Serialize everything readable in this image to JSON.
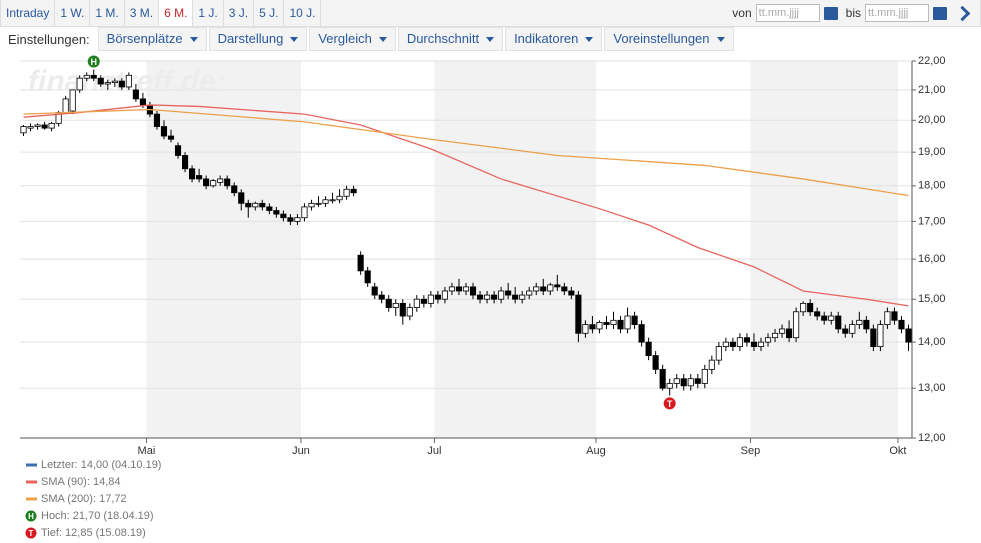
{
  "toolbar": {
    "periods": [
      "Intraday",
      "1 W.",
      "1 M.",
      "3 M.",
      "6 M.",
      "1 J.",
      "3 J.",
      "5 J.",
      "10 J."
    ],
    "active_period": 4,
    "from_label": "von",
    "to_label": "bis",
    "date_placeholder": "tt.mm.jjjj"
  },
  "settings": {
    "label": "Einstellungen:",
    "menus": [
      "Börsenplätze",
      "Darstellung",
      "Vergleich",
      "Durchschnitt",
      "Indikatoren",
      "Voreinstellungen"
    ]
  },
  "chart_data": {
    "type": "candlestick",
    "watermark": "finanztreff.de:",
    "up_color": "#ffffff",
    "down_color": "#000000",
    "ohlc": [
      [
        19.6,
        19.85,
        19.5,
        19.8
      ],
      [
        19.75,
        19.9,
        19.65,
        19.8
      ],
      [
        19.8,
        19.9,
        19.7,
        19.85
      ],
      [
        19.85,
        19.95,
        19.7,
        19.75
      ],
      [
        19.75,
        19.95,
        19.65,
        19.9
      ],
      [
        19.9,
        20.3,
        19.8,
        20.25
      ],
      [
        20.25,
        20.8,
        20.2,
        20.7
      ],
      [
        20.3,
        21.0,
        20.2,
        21.0
      ],
      [
        21.0,
        21.5,
        20.9,
        21.4
      ],
      [
        21.4,
        21.6,
        21.3,
        21.5
      ],
      [
        21.5,
        21.7,
        21.3,
        21.4
      ],
      [
        21.4,
        21.5,
        21.1,
        21.2
      ],
      [
        21.2,
        21.35,
        21.0,
        21.25
      ],
      [
        21.25,
        21.4,
        21.1,
        21.3
      ],
      [
        21.3,
        21.4,
        21.0,
        21.1
      ],
      [
        21.1,
        21.6,
        21.0,
        21.5
      ],
      [
        21.0,
        21.2,
        20.6,
        20.7
      ],
      [
        20.7,
        20.9,
        20.4,
        20.5
      ],
      [
        20.5,
        20.6,
        20.1,
        20.2
      ],
      [
        20.2,
        20.3,
        19.7,
        19.8
      ],
      [
        19.8,
        20.0,
        19.4,
        19.5
      ],
      [
        19.5,
        19.7,
        19.3,
        19.4
      ],
      [
        19.2,
        19.3,
        18.8,
        18.9
      ],
      [
        18.9,
        19.0,
        18.4,
        18.5
      ],
      [
        18.5,
        18.6,
        18.1,
        18.2
      ],
      [
        18.3,
        18.5,
        18.1,
        18.2
      ],
      [
        18.2,
        18.3,
        17.9,
        18.0
      ],
      [
        18.0,
        18.2,
        17.95,
        18.15
      ],
      [
        18.1,
        18.3,
        18.0,
        18.2
      ],
      [
        18.2,
        18.3,
        17.9,
        18.0
      ],
      [
        18.0,
        18.1,
        17.7,
        17.8
      ],
      [
        17.8,
        17.9,
        17.3,
        17.5
      ],
      [
        17.5,
        17.6,
        17.1,
        17.4
      ],
      [
        17.4,
        17.55,
        17.3,
        17.5
      ],
      [
        17.5,
        17.6,
        17.3,
        17.4
      ],
      [
        17.4,
        17.5,
        17.2,
        17.3
      ],
      [
        17.3,
        17.4,
        17.1,
        17.2
      ],
      [
        17.2,
        17.3,
        17.0,
        17.1
      ],
      [
        17.1,
        17.2,
        16.9,
        17.0
      ],
      [
        17.0,
        17.2,
        16.9,
        17.1
      ],
      [
        17.1,
        17.5,
        17.0,
        17.4
      ],
      [
        17.4,
        17.6,
        17.3,
        17.5
      ],
      [
        17.5,
        17.7,
        17.4,
        17.5
      ],
      [
        17.5,
        17.7,
        17.4,
        17.6
      ],
      [
        17.6,
        17.8,
        17.5,
        17.6
      ],
      [
        17.6,
        17.9,
        17.5,
        17.7
      ],
      [
        17.7,
        18.0,
        17.6,
        17.9
      ],
      [
        17.9,
        18.0,
        17.7,
        17.8
      ],
      [
        16.1,
        16.2,
        15.6,
        15.7
      ],
      [
        15.7,
        15.8,
        15.3,
        15.4
      ],
      [
        15.3,
        15.4,
        15.0,
        15.1
      ],
      [
        15.1,
        15.2,
        14.9,
        15.0
      ],
      [
        15.0,
        15.1,
        14.7,
        14.8
      ],
      [
        14.8,
        15.0,
        14.6,
        14.9
      ],
      [
        14.9,
        15.0,
        14.4,
        14.6
      ],
      [
        14.6,
        14.9,
        14.5,
        14.8
      ],
      [
        14.8,
        15.1,
        14.7,
        15.0
      ],
      [
        15.0,
        15.1,
        14.8,
        14.9
      ],
      [
        14.9,
        15.2,
        14.8,
        15.1
      ],
      [
        15.1,
        15.2,
        14.9,
        15.0
      ],
      [
        15.0,
        15.3,
        14.9,
        15.2
      ],
      [
        15.2,
        15.4,
        15.1,
        15.3
      ],
      [
        15.3,
        15.5,
        15.1,
        15.2
      ],
      [
        15.2,
        15.4,
        15.1,
        15.3
      ],
      [
        15.3,
        15.4,
        15.0,
        15.1
      ],
      [
        15.1,
        15.2,
        14.9,
        15.0
      ],
      [
        15.0,
        15.2,
        14.9,
        15.1
      ],
      [
        15.1,
        15.2,
        14.9,
        15.0
      ],
      [
        15.0,
        15.3,
        14.9,
        15.2
      ],
      [
        15.2,
        15.4,
        15.0,
        15.1
      ],
      [
        15.1,
        15.3,
        14.9,
        15.0
      ],
      [
        15.0,
        15.2,
        14.9,
        15.1
      ],
      [
        15.1,
        15.3,
        15.0,
        15.2
      ],
      [
        15.2,
        15.4,
        15.1,
        15.3
      ],
      [
        15.3,
        15.5,
        15.1,
        15.2
      ],
      [
        15.2,
        15.4,
        15.1,
        15.35
      ],
      [
        15.35,
        15.6,
        15.2,
        15.3
      ],
      [
        15.3,
        15.4,
        15.1,
        15.2
      ],
      [
        15.2,
        15.3,
        15.0,
        15.1
      ],
      [
        15.1,
        15.2,
        14.0,
        14.2
      ],
      [
        14.2,
        14.5,
        14.1,
        14.4
      ],
      [
        14.4,
        14.6,
        14.2,
        14.3
      ],
      [
        14.3,
        14.5,
        14.2,
        14.45
      ],
      [
        14.45,
        14.6,
        14.3,
        14.4
      ],
      [
        14.4,
        14.7,
        14.3,
        14.5
      ],
      [
        14.5,
        14.6,
        14.2,
        14.3
      ],
      [
        14.3,
        14.8,
        14.2,
        14.6
      ],
      [
        14.6,
        14.7,
        14.3,
        14.4
      ],
      [
        14.4,
        14.5,
        13.9,
        14.0
      ],
      [
        14.0,
        14.1,
        13.6,
        13.7
      ],
      [
        13.7,
        13.8,
        13.3,
        13.4
      ],
      [
        13.4,
        13.5,
        12.95,
        13.0
      ],
      [
        13.0,
        13.2,
        12.85,
        13.1
      ],
      [
        13.1,
        13.3,
        13.0,
        13.2
      ],
      [
        13.2,
        13.3,
        12.95,
        13.05
      ],
      [
        13.05,
        13.3,
        12.95,
        13.2
      ],
      [
        13.2,
        13.3,
        13.0,
        13.1
      ],
      [
        13.1,
        13.5,
        13.0,
        13.4
      ],
      [
        13.4,
        13.7,
        13.3,
        13.6
      ],
      [
        13.6,
        14.0,
        13.5,
        13.9
      ],
      [
        13.9,
        14.1,
        13.8,
        14.0
      ],
      [
        14.0,
        14.1,
        13.8,
        13.9
      ],
      [
        13.9,
        14.2,
        13.8,
        14.1
      ],
      [
        14.1,
        14.2,
        13.9,
        14.0
      ],
      [
        14.0,
        14.2,
        13.8,
        13.9
      ],
      [
        13.9,
        14.1,
        13.8,
        14.0
      ],
      [
        14.0,
        14.2,
        13.9,
        14.1
      ],
      [
        14.1,
        14.3,
        14.0,
        14.2
      ],
      [
        14.2,
        14.4,
        14.1,
        14.3
      ],
      [
        14.3,
        14.5,
        14.0,
        14.1
      ],
      [
        14.1,
        14.8,
        14.0,
        14.7
      ],
      [
        14.7,
        14.95,
        14.6,
        14.9
      ],
      [
        14.9,
        15.0,
        14.6,
        14.7
      ],
      [
        14.7,
        14.8,
        14.5,
        14.6
      ],
      [
        14.6,
        14.7,
        14.4,
        14.5
      ],
      [
        14.5,
        14.7,
        14.4,
        14.6
      ],
      [
        14.6,
        14.7,
        14.2,
        14.3
      ],
      [
        14.3,
        14.4,
        14.1,
        14.2
      ],
      [
        14.2,
        14.5,
        14.1,
        14.4
      ],
      [
        14.4,
        14.7,
        14.3,
        14.5
      ],
      [
        14.5,
        14.6,
        14.2,
        14.3
      ],
      [
        14.3,
        14.4,
        13.8,
        13.9
      ],
      [
        13.9,
        14.5,
        13.8,
        14.4
      ],
      [
        14.4,
        14.8,
        14.3,
        14.7
      ],
      [
        14.7,
        14.8,
        14.4,
        14.5
      ],
      [
        14.5,
        14.6,
        14.2,
        14.3
      ],
      [
        14.3,
        14.4,
        13.8,
        14.0
      ]
    ],
    "xlim": [
      0,
      127
    ],
    "xticks": [
      {
        "value": 18,
        "label": "Mai"
      },
      {
        "value": 40,
        "label": "Jun"
      },
      {
        "value": 59,
        "label": "Jul"
      },
      {
        "value": 82,
        "label": "Aug"
      },
      {
        "value": 104,
        "label": "Sep"
      },
      {
        "value": 125,
        "label": "Okt"
      }
    ],
    "ylim": [
      12,
      22
    ],
    "log_scale": true,
    "grid": true,
    "yticks": [
      {
        "value": 12,
        "label": "12,00"
      },
      {
        "value": 13,
        "label": "13,00"
      },
      {
        "value": 14,
        "label": "14,00"
      },
      {
        "value": 15,
        "label": "15,00"
      },
      {
        "value": 16,
        "label": "16,00"
      },
      {
        "value": 17,
        "label": "17,00"
      },
      {
        "value": 18,
        "label": "18,00"
      },
      {
        "value": 19,
        "label": "19,00"
      },
      {
        "value": 20,
        "label": "20,00"
      },
      {
        "value": 21,
        "label": "21,00"
      },
      {
        "value": 22,
        "label": "22,00"
      }
    ],
    "series": [
      {
        "name": "SMA (90)",
        "color": "#e8645f",
        "x": [
          0,
          8,
          18,
          25,
          40,
          48,
          58,
          68,
          82,
          89,
          96,
          104,
          111,
          120,
          126
        ],
        "values": [
          20.1,
          20.25,
          20.5,
          20.45,
          20.2,
          19.85,
          19.1,
          18.2,
          17.35,
          16.9,
          16.3,
          15.8,
          15.2,
          15.0,
          14.84
        ]
      },
      {
        "name": "SMA (200)",
        "color": "#eba04a",
        "x": [
          0,
          18,
          40,
          58,
          76,
          97,
          111,
          126
        ],
        "values": [
          20.2,
          20.35,
          19.95,
          19.4,
          18.9,
          18.6,
          18.2,
          17.72
        ]
      }
    ],
    "markers": [
      {
        "label": "H",
        "color": "#1e7e1e",
        "index": 10,
        "value": 21.7
      },
      {
        "label": "T",
        "color": "#d7181f",
        "index": 92,
        "value": 12.85
      }
    ],
    "legend": [
      {
        "text": "Letzter: 14,00 (04.10.19)",
        "color": "#3d6fb0"
      },
      {
        "text": "SMA (90): 14,84",
        "color": "#e8645f"
      },
      {
        "text": "SMA (200): 17,72",
        "color": "#eba04a"
      },
      {
        "text": "Hoch: 21,70 (18.04.19)",
        "marker": 0
      },
      {
        "text": "Tief: 12,85 (15.08.19)",
        "marker": 1
      }
    ]
  }
}
